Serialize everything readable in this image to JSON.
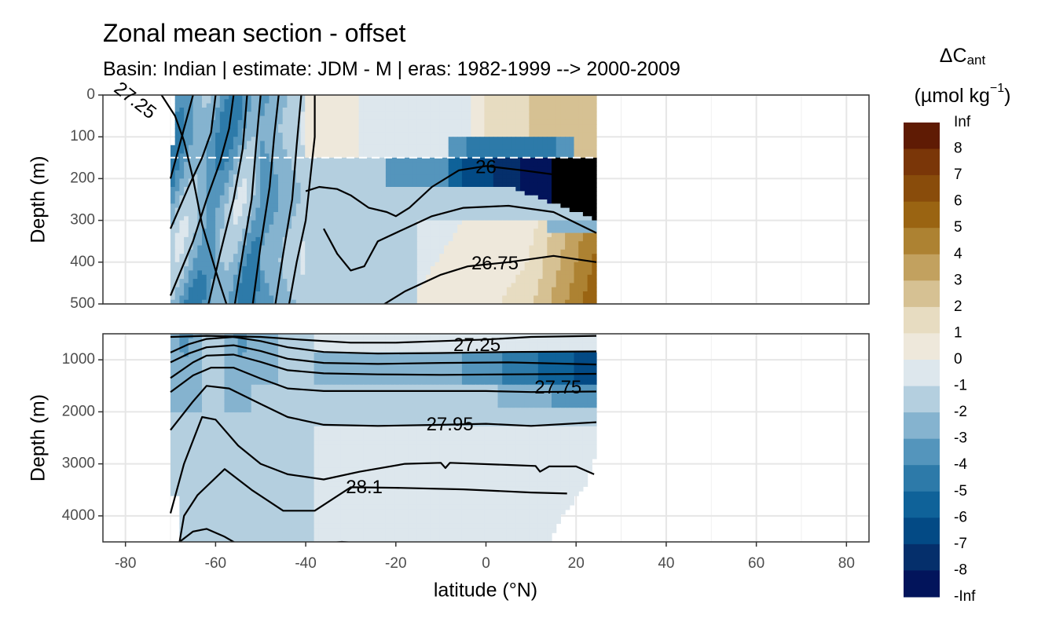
{
  "chart_data": {
    "type": "heatmap",
    "title": "Zonal mean section - offset",
    "subtitle": "Basin: Indian | estimate: JDM - M | eras: 1982-1999 --> 2000-2009",
    "xlabel": "latitude (°N)",
    "ylabel": "Depth (m)",
    "x_ticks": [
      "-80",
      "-60",
      "-40",
      "-20",
      "0",
      "20",
      "40",
      "60",
      "80"
    ],
    "x_tick_values": [
      -80,
      -60,
      -40,
      -20,
      0,
      20,
      40,
      60,
      80
    ],
    "xlim": [
      -85,
      85
    ],
    "data_xrange": [
      -70,
      24.5
    ],
    "panels": [
      {
        "name": "upper",
        "ylim": [
          0,
          500
        ],
        "y_ticks": [
          "0",
          "100",
          "200",
          "300",
          "400",
          "500"
        ],
        "y_tick_values": [
          0,
          100,
          200,
          300,
          400,
          500
        ],
        "reference_depth": 150
      },
      {
        "name": "lower",
        "ylim": [
          500,
          4500
        ],
        "y_ticks": [
          "1000",
          "2000",
          "3000",
          "4000"
        ],
        "y_tick_values": [
          1000,
          2000,
          3000,
          4000
        ]
      }
    ],
    "contour_labels": [
      {
        "text": "27.25",
        "lat": -78,
        "depth": 15,
        "panel": 0,
        "rot": 38
      },
      {
        "text": "26",
        "lat": 0,
        "depth": 175,
        "panel": 0,
        "rot": 0
      },
      {
        "text": "26.75",
        "lat": 2,
        "depth": 405,
        "panel": 0,
        "rot": 0
      },
      {
        "text": "27.25",
        "lat": -2,
        "depth": 740,
        "panel": 1,
        "rot": 0
      },
      {
        "text": "27.75",
        "lat": 16,
        "depth": 1550,
        "panel": 1,
        "rot": 0
      },
      {
        "text": "27.95",
        "lat": -8,
        "depth": 2260,
        "panel": 1,
        "rot": 0
      },
      {
        "text": "28.1",
        "lat": -27,
        "depth": 3470,
        "panel": 1,
        "rot": 0
      }
    ],
    "legend": {
      "title": "ΔC",
      "title_sub": "ant",
      "units_prefix": "(µmol kg",
      "units_sup": "−1",
      "units_suffix": ")",
      "position": "right",
      "labels": [
        "Inf",
        "8",
        "7",
        "6",
        "5",
        "4",
        "3",
        "2",
        "1",
        "0",
        "-1",
        "-2",
        "-3",
        "-4",
        "-5",
        "-6",
        "-7",
        "-8",
        "-Inf"
      ],
      "colors": [
        "#5f1b04",
        "#7a3608",
        "#894c0b",
        "#9a6412",
        "#ad8232",
        "#c2a15f",
        "#d6c193",
        "#e7dcc1",
        "#eee8db",
        "#dde7ed",
        "#b4cfdf",
        "#85b3cf",
        "#5495bc",
        "#2d7aa9",
        "#0f6299",
        "#034a85",
        "#052f6b",
        "#02145b"
      ]
    }
  }
}
